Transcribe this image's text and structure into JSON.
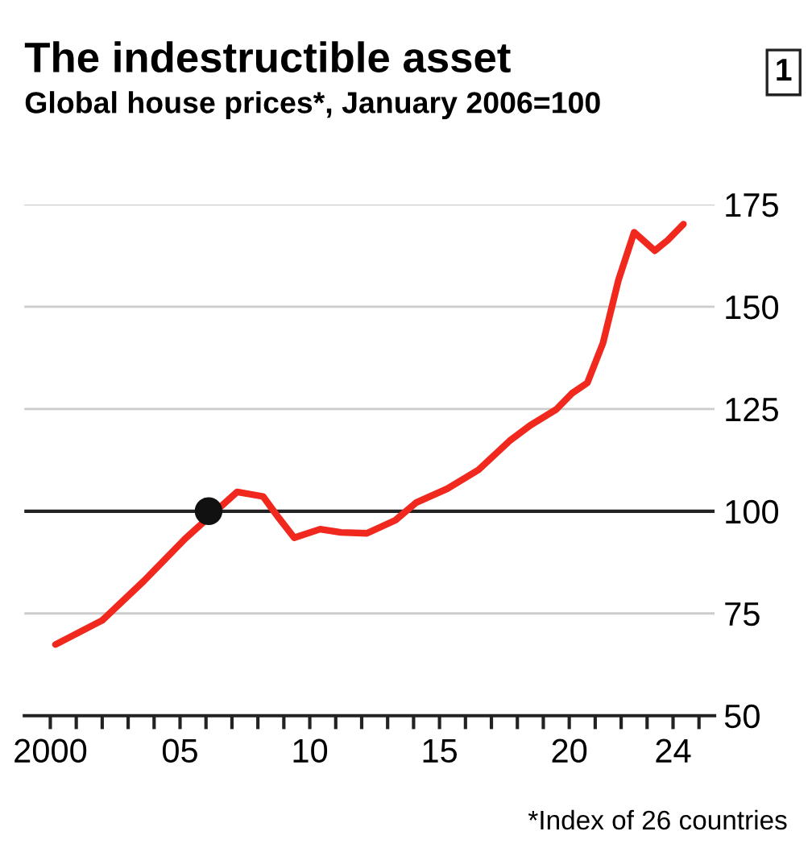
{
  "chart_data": {
    "type": "line",
    "title": "The indestructible asset",
    "subtitle": "Global house prices*, January 2006=100",
    "annotations": [
      "1",
      "*Index of 26 countries"
    ],
    "series": [
      {
        "color": "#f0281e",
        "x": [
          2000.2,
          2002.0,
          2003.6,
          2005.2,
          2007.2,
          2008.2,
          2008.8,
          2009.4,
          2010.4,
          2011.2,
          2012.2,
          2013.3,
          2014.1,
          2015.3,
          2016.5,
          2017.7,
          2018.5,
          2019.5,
          2020.1,
          2020.7,
          2021.3,
          2021.9,
          2022.5,
          2023.3,
          2023.8,
          2024.4
        ],
        "values": [
          67.4,
          73.3,
          82.9,
          93.3,
          104.7,
          103.6,
          98.4,
          93.5,
          95.6,
          94.8,
          94.6,
          97.8,
          102.1,
          105.5,
          110.1,
          117.2,
          121.0,
          124.9,
          128.8,
          131.4,
          141.1,
          156.6,
          168.2,
          163.7,
          166.3,
          170.2
        ]
      },
      {
        "type": "scatter",
        "color": "#111111",
        "x": [
          2006.1
        ],
        "values": [
          100
        ],
        "marker": "circle"
      }
    ],
    "xlim": [
      1999,
      2025.6
    ],
    "ylim": [
      50,
      175
    ],
    "xticks": [
      2000,
      {
        "value": 2001,
        "label": null
      },
      {
        "value": 2002,
        "label": null
      },
      {
        "value": 2003,
        "label": null
      },
      {
        "value": 2004,
        "label": null
      },
      {
        "value": 2005,
        "label": "05"
      },
      {
        "value": 2006,
        "label": null
      },
      {
        "value": 2007,
        "label": null
      },
      {
        "value": 2008,
        "label": null
      },
      {
        "value": 2009,
        "label": null
      },
      {
        "value": 2010,
        "label": "10"
      },
      {
        "value": 2011,
        "label": null
      },
      {
        "value": 2012,
        "label": null
      },
      {
        "value": 2013,
        "label": null
      },
      {
        "value": 2014,
        "label": null
      },
      {
        "value": 2015,
        "label": "15"
      },
      {
        "value": 2016,
        "label": null
      },
      {
        "value": 2017,
        "label": null
      },
      {
        "value": 2018,
        "label": null
      },
      {
        "value": 2019,
        "label": null
      },
      {
        "value": 2020,
        "label": "20"
      },
      {
        "value": 2021,
        "label": null
      },
      {
        "value": 2022,
        "label": null
      },
      {
        "value": 2023,
        "label": null
      },
      {
        "value": 2024,
        "label": "24"
      },
      {
        "value": 2025,
        "label": null
      }
    ],
    "yticks": [
      50,
      75,
      100,
      125,
      150,
      175
    ],
    "ref_lines": [
      {
        "axis": "y",
        "value": 100,
        "color": "#222222"
      }
    ],
    "grid": "y",
    "legend": false
  }
}
